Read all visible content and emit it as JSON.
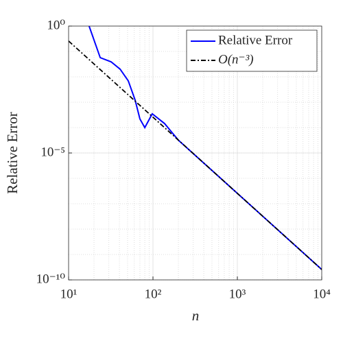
{
  "chart_data": {
    "type": "line",
    "xlabel": "n",
    "ylabel": "Relative Error",
    "xscale": "log",
    "yscale": "log",
    "grid": true,
    "legend": "upper right",
    "xlim": [
      10,
      10000
    ],
    "ylim": [
      1e-10,
      1
    ],
    "xticks": [
      {
        "value": 10,
        "label": "10¹"
      },
      {
        "value": 100,
        "label": "10²"
      },
      {
        "value": 1000,
        "label": "10³"
      },
      {
        "value": 10000,
        "label": "10⁴"
      }
    ],
    "yticks": [
      {
        "value": 1e-10,
        "label": "10⁻¹⁰"
      },
      {
        "value": 1e-05,
        "label": "10⁻⁵"
      },
      {
        "value": 1,
        "label": "10⁰"
      }
    ],
    "series": [
      {
        "name": "Relative Error",
        "color": "#0000ff",
        "dash": "solid",
        "x": [
          17.5,
          23.7,
          31.9,
          40.8,
          51,
          61.5,
          70,
          80,
          98,
          137,
          200,
          300,
          1000,
          10000
        ],
        "values": [
          1,
          0.057,
          0.039,
          0.02,
          0.0069,
          0.0012,
          0.00022,
          0.0001,
          0.00035,
          0.000145,
          3.2e-05,
          9.5e-06,
          2.57e-07,
          2.57e-10
        ]
      },
      {
        "name": "O(n⁻³)",
        "color": "#000000",
        "dash": "dashdot",
        "x": [
          10,
          10000
        ],
        "values": [
          0.257,
          2.57e-10
        ]
      }
    ]
  }
}
